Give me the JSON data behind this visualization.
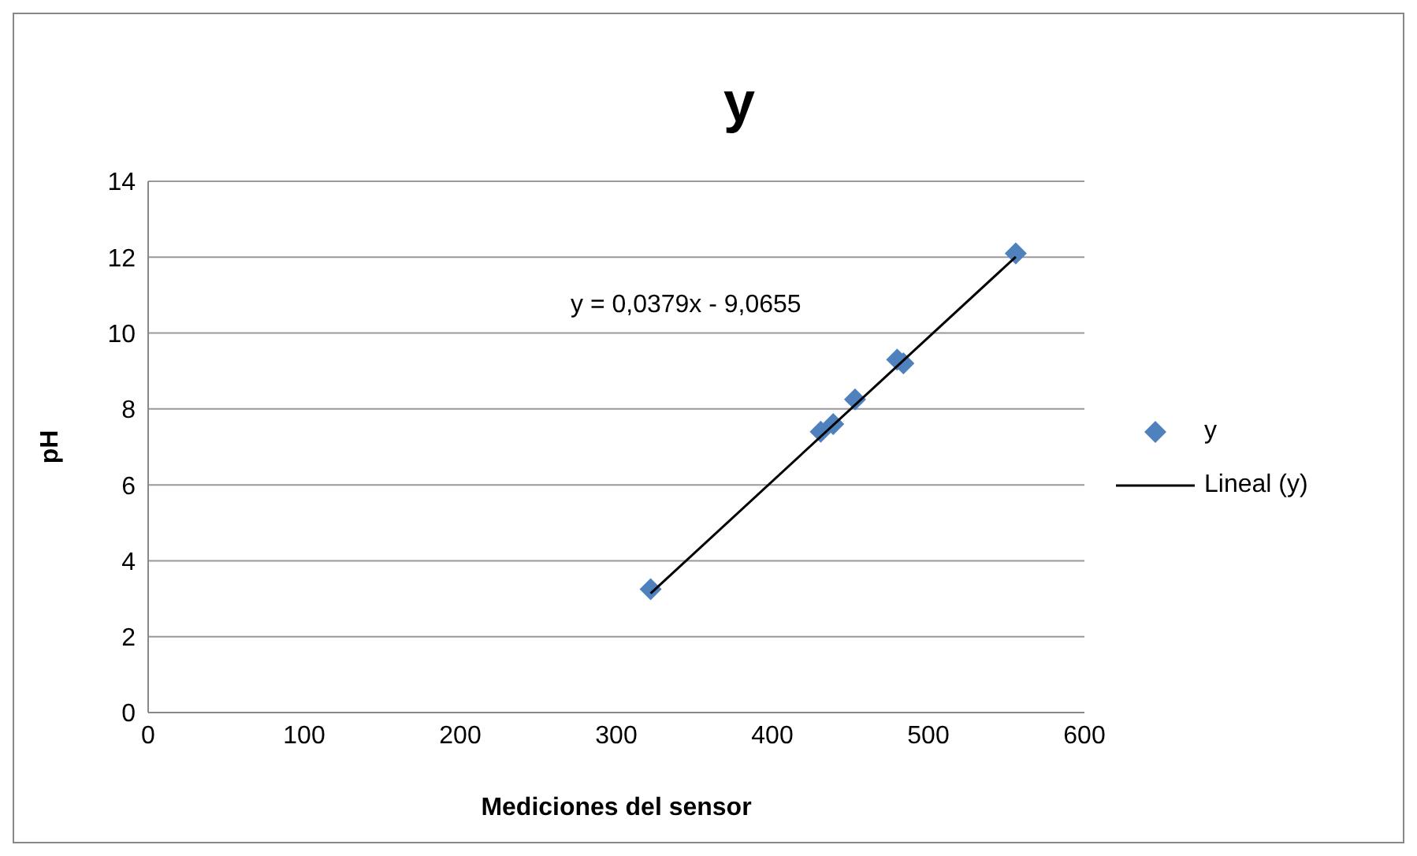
{
  "chart_data": {
    "type": "scatter",
    "title": "y",
    "xlabel": "Mediciones del sensor",
    "ylabel": "pH",
    "xlim": [
      0,
      600
    ],
    "xticks": [
      0,
      100,
      200,
      300,
      400,
      500,
      600
    ],
    "ylim": [
      0,
      14
    ],
    "yticks": [
      0,
      2,
      4,
      6,
      8,
      10,
      12,
      14
    ],
    "grid": "y",
    "legend": "right",
    "annotations": [
      "y = 0,0379x - 9,0655"
    ],
    "series": [
      {
        "name": "y",
        "color": "#4f81bd",
        "marker": "diamond",
        "x": [
          322,
          431,
          439,
          453,
          480,
          484,
          556
        ],
        "values": [
          3.25,
          7.4,
          7.6,
          8.25,
          9.3,
          9.2,
          12.1
        ]
      },
      {
        "name": "Lineal (y)",
        "type": "line",
        "color": "#000000",
        "marker": "none",
        "x": [
          322,
          556
        ],
        "values": [
          3.14,
          12.01
        ]
      }
    ]
  }
}
